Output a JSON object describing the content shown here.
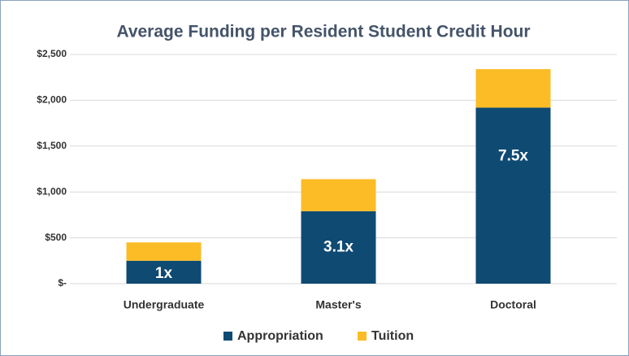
{
  "chart_data": {
    "type": "stacked_bar",
    "title": "Average Funding per Resident Student Credit Hour",
    "categories": [
      "Undergraduate",
      "Master's",
      "Doctoral"
    ],
    "series": [
      {
        "name": "Appropriation",
        "color": "#0f4a73",
        "values": [
          250,
          790,
          1920
        ]
      },
      {
        "name": "Tuition",
        "color": "#fbbc26",
        "values": [
          200,
          350,
          420
        ]
      }
    ],
    "annotations": [
      "1x",
      "3.1x",
      "7.5x"
    ],
    "ylim": [
      0,
      2500
    ],
    "yticks": [
      {
        "value": 0,
        "label": "$-"
      },
      {
        "value": 500,
        "label": "$500"
      },
      {
        "value": 1000,
        "label": "$1,000"
      },
      {
        "value": 1500,
        "label": "$1,500"
      },
      {
        "value": 2000,
        "label": "$2,000"
      },
      {
        "value": 2500,
        "label": "$2,500"
      }
    ],
    "grid": true,
    "legend": "bottom"
  }
}
